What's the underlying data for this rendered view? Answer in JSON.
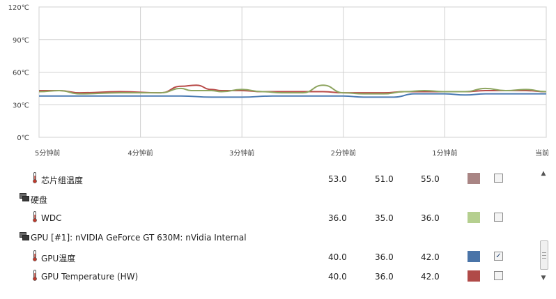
{
  "chart_data": {
    "type": "line",
    "y_ticks": [
      "120℃",
      "90℃",
      "60℃",
      "30℃",
      "0℃"
    ],
    "ylim": [
      0,
      120
    ],
    "x_ticks": [
      "5分钟前",
      "4分钟前",
      "3分钟前",
      "2分钟前",
      "1分钟前",
      "当前"
    ],
    "xlim": [
      -5,
      0
    ],
    "grid": true,
    "series": [
      {
        "color": "#4a7ab3",
        "x": [
          -5,
          -4,
          -3.6,
          -3.3,
          -3.0,
          -2.7,
          -2.5,
          -2.3,
          -2.0,
          -1.8,
          -1.6,
          -1.5,
          -1.3,
          -1.0,
          -0.8,
          -0.6,
          -0.4,
          -0.2,
          0
        ],
        "values": [
          38,
          38,
          38,
          37,
          37,
          38,
          38,
          38,
          38,
          37,
          37,
          37,
          40,
          40,
          39,
          40,
          40,
          40,
          40
        ]
      },
      {
        "color": "#b84a48",
        "x": [
          -5,
          -4.8,
          -4.6,
          -4.2,
          -3.8,
          -3.6,
          -3.45,
          -3.3,
          -3.2,
          -3.0,
          -2.8,
          -2.6,
          -2.4,
          -2.2,
          -2.0,
          -1.8,
          -1.6,
          -1.4,
          -1.2,
          -1.0,
          -0.8,
          -0.6,
          -0.4,
          -0.2,
          0
        ],
        "values": [
          43,
          43,
          41,
          42,
          41,
          47,
          48,
          44,
          43,
          43,
          42,
          42,
          42,
          42,
          41,
          41,
          41,
          42,
          42,
          42,
          42,
          43,
          43,
          43,
          42
        ]
      },
      {
        "color": "#8ea560",
        "x": [
          -5,
          -4.8,
          -4.6,
          -4.2,
          -3.8,
          -3.6,
          -3.5,
          -3.3,
          -3.2,
          -3.0,
          -2.8,
          -2.6,
          -2.4,
          -2.2,
          -2.0,
          -1.8,
          -1.6,
          -1.4,
          -1.2,
          -1.0,
          -0.8,
          -0.6,
          -0.4,
          -0.2,
          0
        ],
        "values": [
          42,
          43,
          40,
          41,
          41,
          45,
          43,
          43,
          42,
          44,
          42,
          41,
          41,
          48,
          41,
          40,
          40,
          42,
          43,
          42,
          42,
          45,
          43,
          44,
          42
        ]
      }
    ]
  },
  "sensors": [
    {
      "kind": "sensor",
      "label": "芯片组温度",
      "v1": "53.0",
      "v2": "51.0",
      "v3": "55.0",
      "color": "#a98584",
      "checked": false
    },
    {
      "kind": "group",
      "label": "硬盘"
    },
    {
      "kind": "sensor",
      "label": "WDC",
      "v1": "36.0",
      "v2": "35.0",
      "v3": "36.0",
      "color": "#b5cf8f",
      "checked": false
    },
    {
      "kind": "group",
      "label": "GPU [#1]: nVIDIA GeForce GT 630M: nVidia Internal"
    },
    {
      "kind": "sensor",
      "label": "GPU温度",
      "v1": "40.0",
      "v2": "36.0",
      "v3": "42.0",
      "color": "#4a74a8",
      "checked": true
    },
    {
      "kind": "sensor",
      "label": "GPU Temperature (HW)",
      "v1": "40.0",
      "v2": "36.0",
      "v3": "42.0",
      "color": "#b04a48",
      "checked": false
    }
  ],
  "icons": {
    "sensor": "thermometer-icon",
    "group": "device-group-icon",
    "check": "✓",
    "up": "▲",
    "down": "▼"
  }
}
